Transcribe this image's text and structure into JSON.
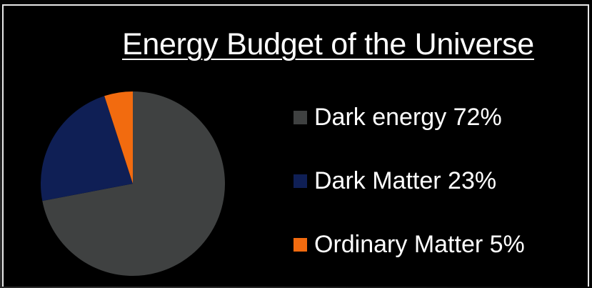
{
  "chart_data": {
    "type": "pie",
    "title": "Energy Budget of the Universe",
    "categories": [
      "Dark energy",
      "Dark Matter",
      "Ordinary Matter"
    ],
    "values": [
      72,
      23,
      5
    ],
    "labels": [
      "Dark energy 72%",
      "Dark Matter 23%",
      "Ordinary Matter 5%"
    ],
    "colors": [
      "#3f4141",
      "#0f1f55",
      "#f26b0f"
    ],
    "legend_position": "right"
  }
}
